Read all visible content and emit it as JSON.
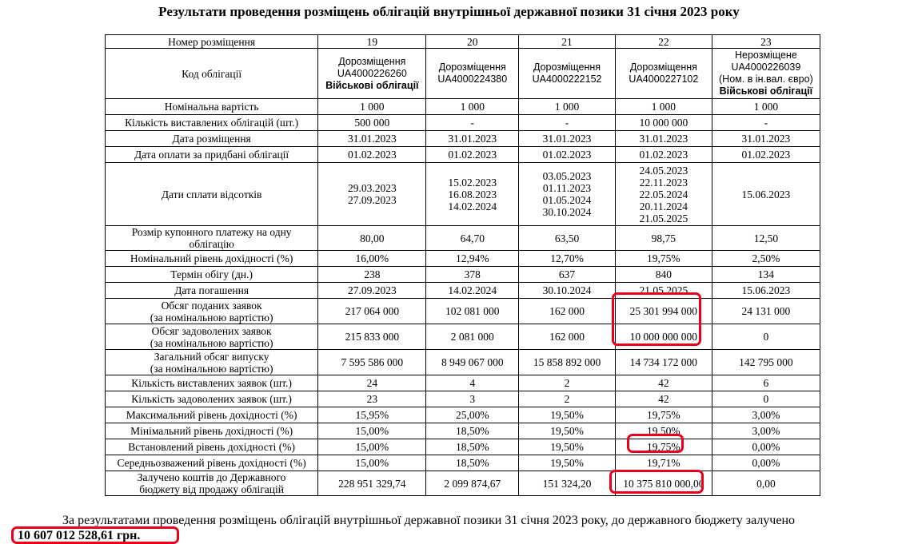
{
  "title": "Результати проведення розміщень облігацій внутрішньої державної позики 31 січня 2023 року",
  "header_row": {
    "label": "Номер розміщення",
    "values": [
      "19",
      "20",
      "21",
      "22",
      "23"
    ]
  },
  "code_row": {
    "label": "Код облігації",
    "cells": [
      [
        "Дорозміщення",
        "UA4000226260",
        {
          "bold": "Військові облігації"
        }
      ],
      [
        "Дорозміщення",
        "UA4000224380"
      ],
      [
        "Дорозміщення",
        "UA4000222152"
      ],
      [
        "Дорозміщення",
        "UA4000227102"
      ],
      [
        "Нерозміщене",
        "UA4000226039",
        "(Ном. в ін.вал. євро)",
        {
          "bold": "Військові облігації"
        }
      ]
    ]
  },
  "rows": [
    {
      "label": [
        "Номінальна вартість"
      ],
      "values": [
        [
          "1 000"
        ],
        [
          "1 000"
        ],
        [
          "1 000"
        ],
        [
          "1 000"
        ],
        [
          "1 000"
        ]
      ]
    },
    {
      "label": [
        "Кількість виставлених облігацій (шт.)"
      ],
      "values": [
        [
          "500 000"
        ],
        [
          "-"
        ],
        [
          "-"
        ],
        [
          "10 000 000"
        ],
        [
          "-"
        ]
      ]
    },
    {
      "label": [
        "Дата розміщення"
      ],
      "values": [
        [
          "31.01.2023"
        ],
        [
          "31.01.2023"
        ],
        [
          "31.01.2023"
        ],
        [
          "31.01.2023"
        ],
        [
          "31.01.2023"
        ]
      ]
    },
    {
      "label": [
        "Дата оплати за придбані облігації"
      ],
      "values": [
        [
          "01.02.2023"
        ],
        [
          "01.02.2023"
        ],
        [
          "01.02.2023"
        ],
        [
          "01.02.2023"
        ],
        [
          "01.02.2023"
        ]
      ]
    },
    {
      "label": [
        "Дати сплати відсотків"
      ],
      "values": [
        [
          "29.03.2023",
          "27.09.2023"
        ],
        [
          "15.02.2023",
          "16.08.2023",
          "14.02.2024"
        ],
        [
          "03.05.2023",
          "01.11.2023",
          "01.05.2024",
          "30.10.2024"
        ],
        [
          "24.05.2023",
          "22.11.2023",
          "22.05.2024",
          "20.11.2024",
          "21.05.2025"
        ],
        [
          "15.06.2023"
        ]
      ]
    },
    {
      "label": [
        "Розмір купонного платежу на одну",
        "облігацію"
      ],
      "values": [
        [
          "80,00"
        ],
        [
          "64,70"
        ],
        [
          "63,50"
        ],
        [
          "98,75"
        ],
        [
          "12,50"
        ]
      ]
    },
    {
      "label": [
        "Номінальний рівень дохідності (%)"
      ],
      "values": [
        [
          "16,00%"
        ],
        [
          "12,94%"
        ],
        [
          "12,70%"
        ],
        [
          "19,75%"
        ],
        [
          "2,50%"
        ]
      ]
    },
    {
      "label": [
        "Термін обігу (дн.)"
      ],
      "values": [
        [
          "238"
        ],
        [
          "378"
        ],
        [
          "637"
        ],
        [
          "840"
        ],
        [
          "134"
        ]
      ]
    },
    {
      "label": [
        "Дата погашення"
      ],
      "values": [
        [
          "27.09.2023"
        ],
        [
          "14.02.2024"
        ],
        [
          "30.10.2024"
        ],
        [
          "21.05.2025"
        ],
        [
          "15.06.2023"
        ]
      ]
    },
    {
      "label": [
        "Обсяг поданих заявок",
        "(за номінальною вартістю)"
      ],
      "values": [
        [
          "217 064 000"
        ],
        [
          "102 081 000"
        ],
        [
          "162 000"
        ],
        [
          "25 301 994 000"
        ],
        [
          "24 131 000"
        ]
      ]
    },
    {
      "label": [
        "Обсяг задоволених заявок",
        "(за номінальною вартістю)"
      ],
      "values": [
        [
          "215 833 000"
        ],
        [
          "2 081 000"
        ],
        [
          "162 000"
        ],
        [
          "10 000 000 000"
        ],
        [
          "0"
        ]
      ]
    },
    {
      "label": [
        "Загальний обсяг випуску",
        "(за номінальною вартістю)"
      ],
      "values": [
        [
          "7 595 586 000"
        ],
        [
          "8 949 067 000"
        ],
        [
          "15 858 892 000"
        ],
        [
          "14 734 172 000"
        ],
        [
          "142 795 000"
        ]
      ]
    },
    {
      "label": [
        "Кількість виставлених заявок (шт.)"
      ],
      "values": [
        [
          "24"
        ],
        [
          "4"
        ],
        [
          "2"
        ],
        [
          "42"
        ],
        [
          "6"
        ]
      ]
    },
    {
      "label": [
        "Кількість задоволених заявок (шт.)"
      ],
      "values": [
        [
          "23"
        ],
        [
          "3"
        ],
        [
          "2"
        ],
        [
          "42"
        ],
        [
          "0"
        ]
      ]
    },
    {
      "label": [
        "Максимальний рівень дохідності (%)"
      ],
      "values": [
        [
          "15,95%"
        ],
        [
          "25,00%"
        ],
        [
          "19,50%"
        ],
        [
          "19,75%"
        ],
        [
          "3,00%"
        ]
      ]
    },
    {
      "label": [
        "Мінімальний рівень дохідності (%)"
      ],
      "values": [
        [
          "15,00%"
        ],
        [
          "18,50%"
        ],
        [
          "19,50%"
        ],
        [
          "19,50%"
        ],
        [
          "3,00%"
        ]
      ]
    },
    {
      "label": [
        "Встановлений рівень дохідності (%)"
      ],
      "values": [
        [
          "15,00%"
        ],
        [
          "18,50%"
        ],
        [
          "19,50%"
        ],
        [
          "19,75%"
        ],
        [
          "0,00%"
        ]
      ]
    },
    {
      "label": [
        "Середньозважений рівень дохідності (%)"
      ],
      "values": [
        [
          "15,00%"
        ],
        [
          "18,50%"
        ],
        [
          "19,50%"
        ],
        [
          "19,71%"
        ],
        [
          "0,00%"
        ]
      ]
    },
    {
      "label": [
        "Залучено коштів до Державного",
        "бюджету від продажу облігацій"
      ],
      "values": [
        [
          "228 951 329,74"
        ],
        [
          "2 099 874,67"
        ],
        [
          "151 324,20"
        ],
        [
          "10 375 810 000,00"
        ],
        [
          "0,00"
        ]
      ]
    }
  ],
  "summary": "За результатами проведення розміщень облігацій внутрішньої державної позики 31 січня 2023 року, до державного бюджету залучено",
  "total": "10 607 012 528,61 грн.",
  "highlight_color": "#e8001c"
}
